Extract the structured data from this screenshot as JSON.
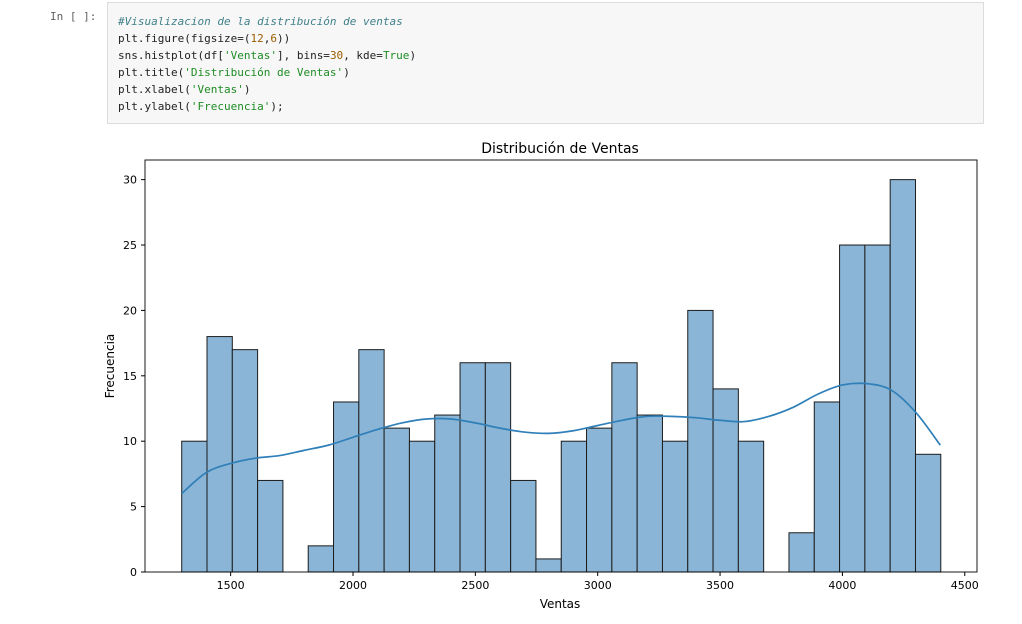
{
  "cell": {
    "prompt": "In [ ]:",
    "code": {
      "l1": "#Visualizacion de la distribución de ventas",
      "l2": {
        "a": "plt.figure(figsize=(",
        "b": "12",
        "c": ",",
        "d": "6",
        "e": "))"
      },
      "l3": {
        "a": "sns.histplot(df[",
        "b": "'Ventas'",
        "c": "], bins=",
        "d": "30",
        "e": ", kde=",
        "f": "True",
        "g": ")"
      },
      "l4": {
        "a": "plt.title(",
        "b": "'Distribución de Ventas'",
        "c": ")"
      },
      "l5": {
        "a": "plt.xlabel(",
        "b": "'Ventas'",
        "c": ")"
      },
      "l6": {
        "a": "plt.ylabel(",
        "b": "'Frecuencia'",
        "c": ");"
      }
    }
  },
  "chart_data": {
    "type": "bar",
    "title": "Distribución de Ventas",
    "xlabel": "Ventas",
    "ylabel": "Frecuencia",
    "xlim": [
      1150,
      4550
    ],
    "ylim": [
      0,
      31.5
    ],
    "xticks": [
      1500,
      2000,
      2500,
      3000,
      3500,
      4000,
      4500
    ],
    "yticks": [
      0,
      5,
      10,
      15,
      20,
      25,
      30
    ],
    "bins": {
      "start": 1300,
      "width": 103.4
    },
    "values": [
      10,
      18,
      17,
      7,
      0,
      2,
      13,
      17,
      11,
      10,
      12,
      16,
      16,
      7,
      1,
      10,
      11,
      16,
      12,
      10,
      20,
      14,
      10,
      0,
      3,
      13,
      25,
      25,
      30,
      9
    ],
    "kde": {
      "x": [
        1300,
        1400,
        1500,
        1600,
        1700,
        1800,
        1900,
        2000,
        2100,
        2200,
        2300,
        2400,
        2500,
        2600,
        2700,
        2800,
        2900,
        3000,
        3100,
        3200,
        3300,
        3400,
        3500,
        3600,
        3700,
        3800,
        3900,
        4000,
        4100,
        4200,
        4300,
        4400
      ],
      "y": [
        6.0,
        7.6,
        8.3,
        8.7,
        8.9,
        9.3,
        9.7,
        10.3,
        10.9,
        11.4,
        11.7,
        11.7,
        11.4,
        11.0,
        10.7,
        10.6,
        10.8,
        11.2,
        11.6,
        11.9,
        11.9,
        11.8,
        11.6,
        11.5,
        11.9,
        12.6,
        13.6,
        14.3,
        14.4,
        13.9,
        12.2,
        9.7
      ]
    },
    "colors": {
      "bar_fill": "#8ab5d6",
      "bar_edge": "#1c1c1c",
      "kde": "#2f7fb8"
    },
    "grid": false
  }
}
